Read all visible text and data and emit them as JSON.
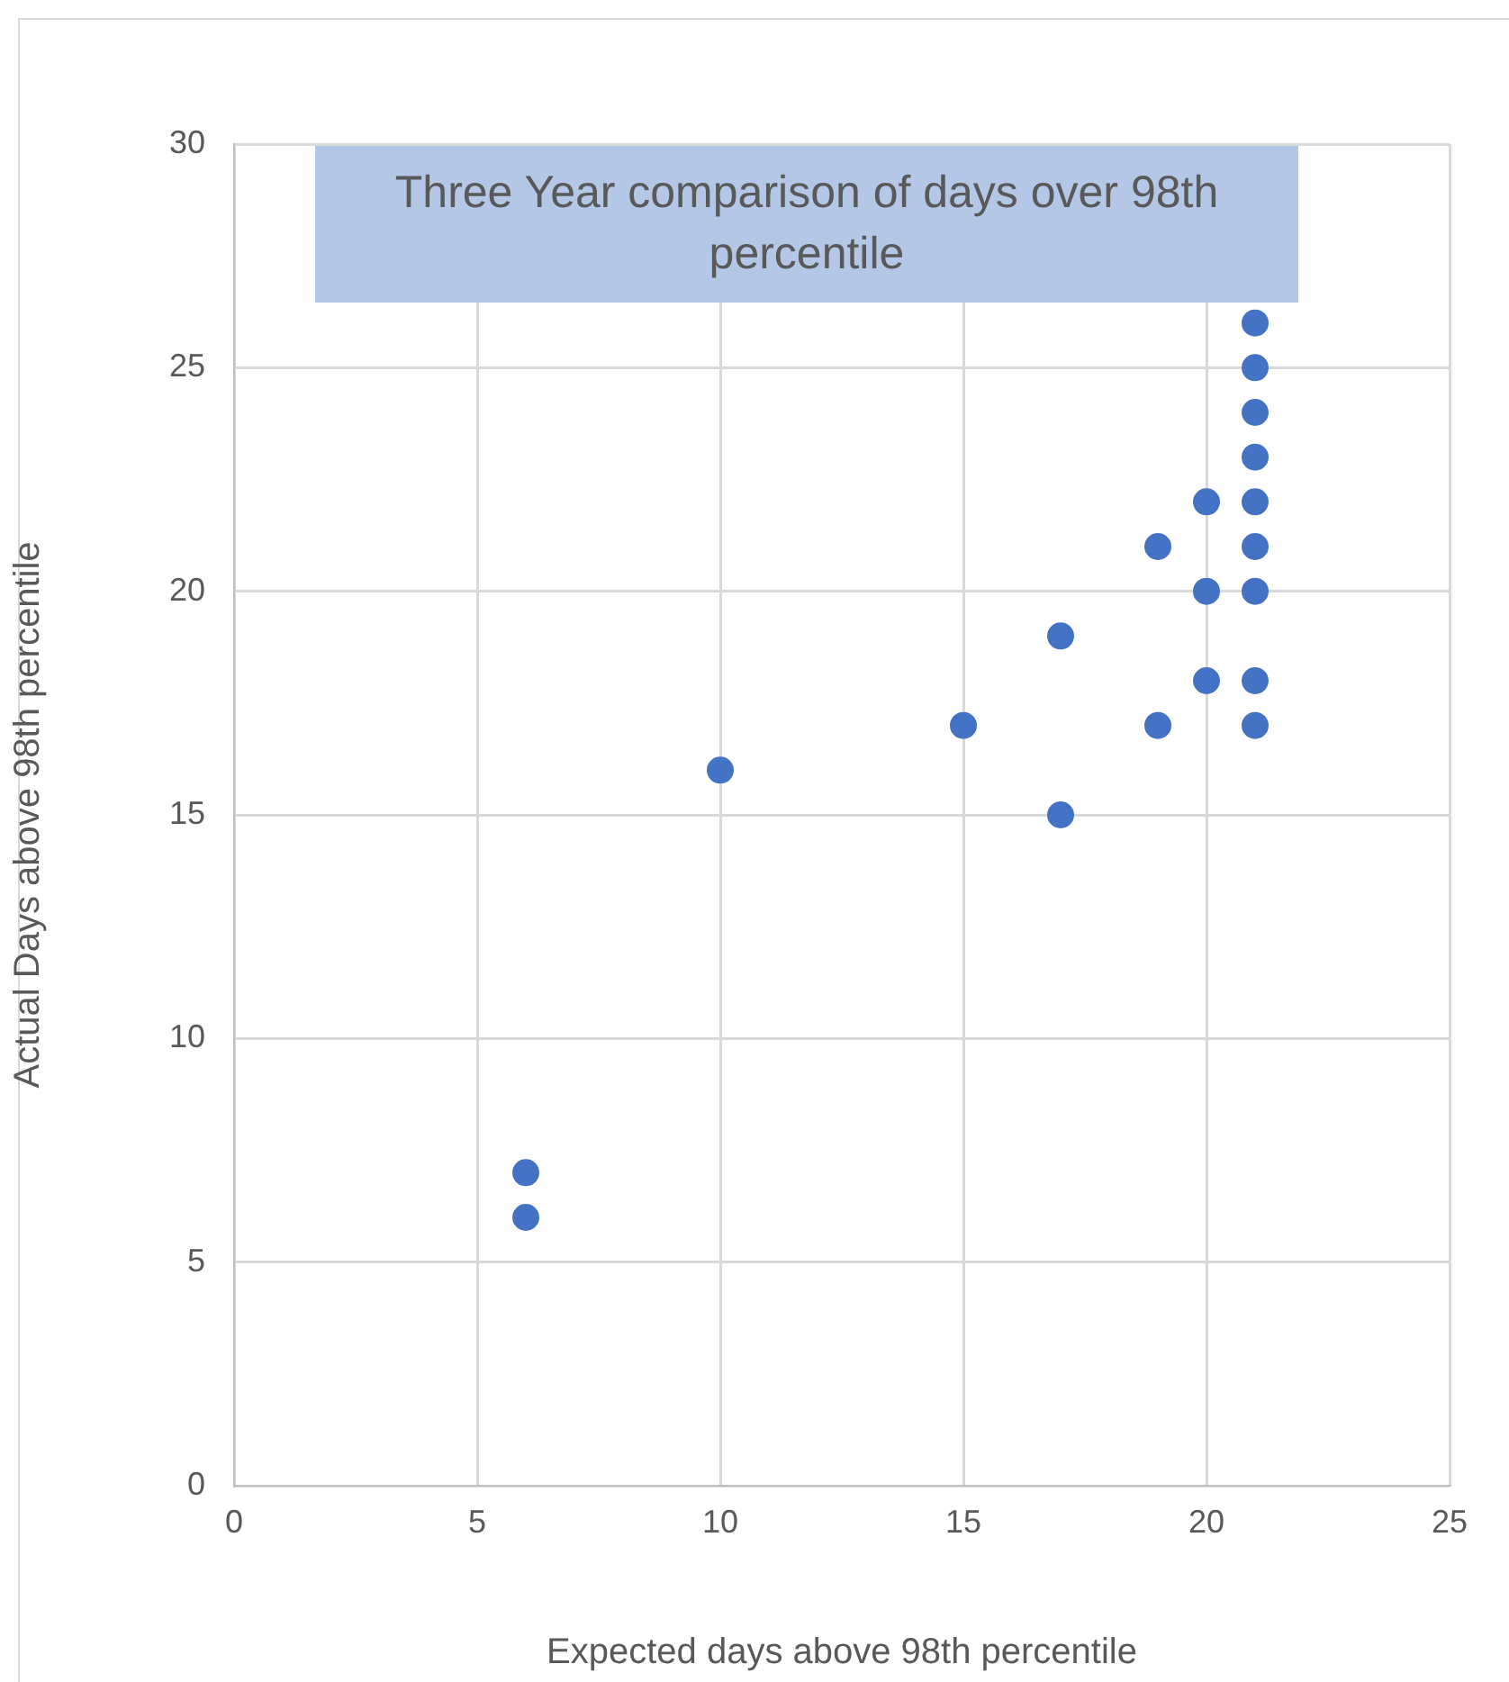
{
  "chart_data": {
    "type": "scatter",
    "title": "Three Year comparison of days over 98th percentile",
    "xlabel": "Expected days above 98th percentile",
    "ylabel": "Actual Days above 98th percentile",
    "xlim": [
      0,
      25
    ],
    "xticks": [
      0,
      5,
      10,
      15,
      20,
      25
    ],
    "ylim": [
      0,
      30
    ],
    "yticks": [
      0,
      5,
      10,
      15,
      20,
      25,
      30
    ],
    "grid": true,
    "legend": false,
    "marker": "circle",
    "series": [
      {
        "color": "#4472c4",
        "x": [
          6,
          6,
          10,
          15,
          17,
          17,
          19,
          19,
          20,
          20,
          20,
          21,
          21,
          21,
          21,
          21,
          21,
          21,
          21,
          21
        ],
        "values": [
          7,
          6,
          16,
          17,
          19,
          15,
          21,
          17,
          22,
          20,
          18,
          26,
          25,
          24,
          23,
          22,
          21,
          20,
          18,
          17
        ]
      }
    ]
  }
}
